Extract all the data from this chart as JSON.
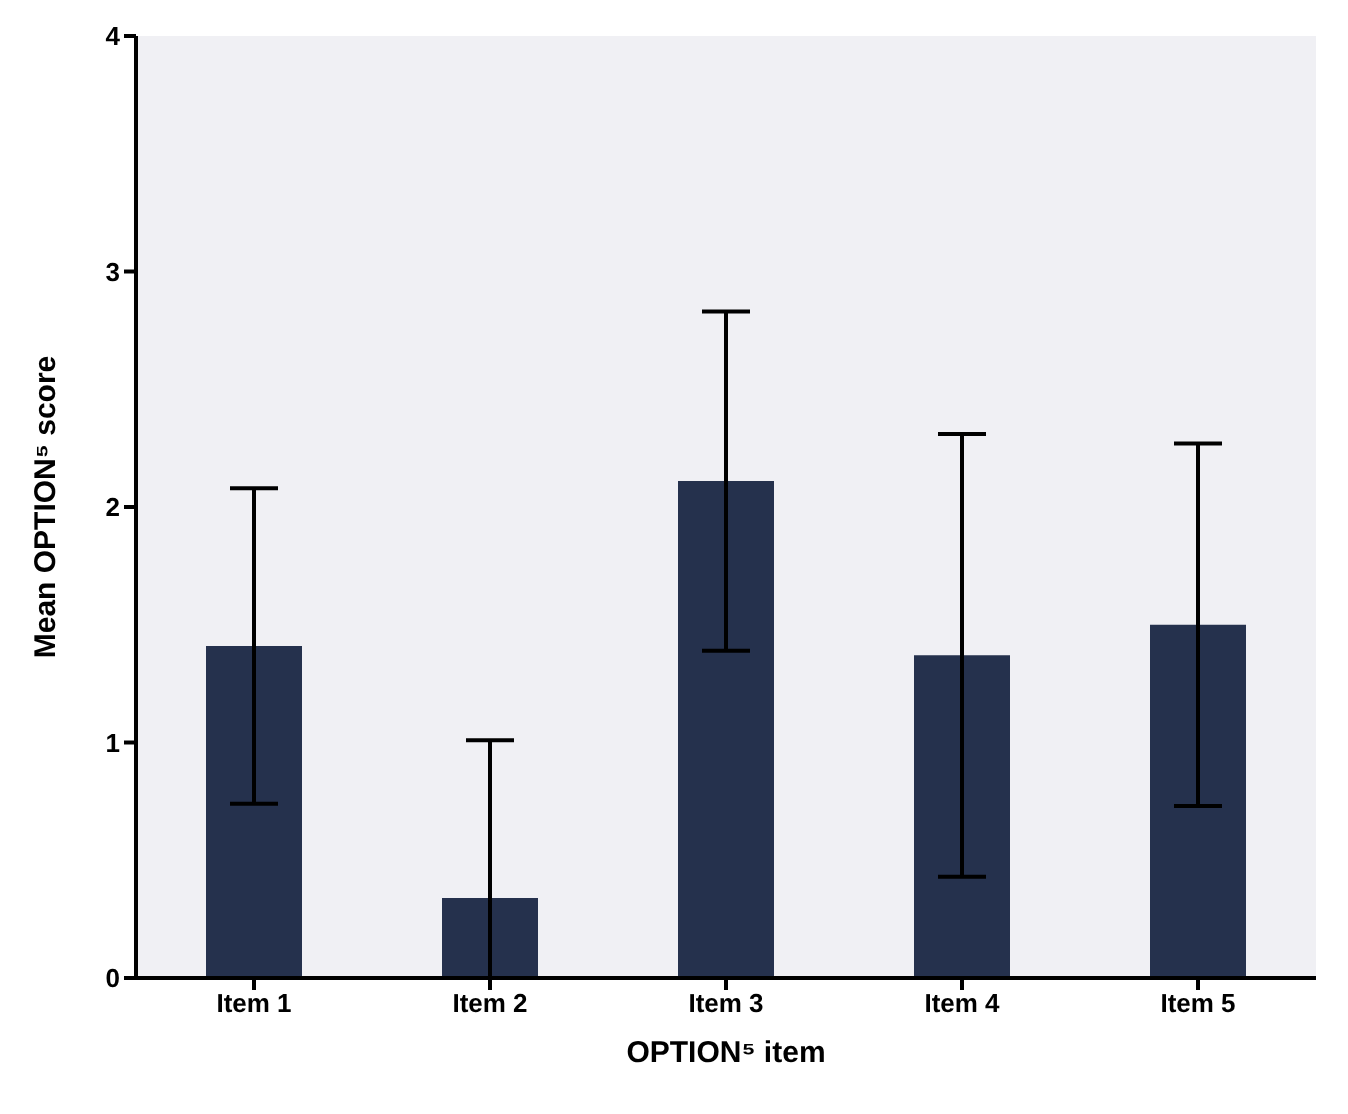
{
  "chart_data": {
    "type": "bar",
    "xlabel": "OPTION⁵ item",
    "ylabel": "Mean OPTION⁵ score",
    "categories": [
      "Item 1",
      "Item 2",
      "Item 3",
      "Item 4",
      "Item 5"
    ],
    "values": [
      1.41,
      0.34,
      2.11,
      1.37,
      1.5
    ],
    "errors": [
      0.67,
      [
        0,
        1.01
      ],
      0.72,
      0.94,
      0.77
    ],
    "color": "#25314d",
    "ylim": [
      0,
      4
    ],
    "yticks": [
      0,
      1,
      2,
      3,
      4
    ]
  }
}
